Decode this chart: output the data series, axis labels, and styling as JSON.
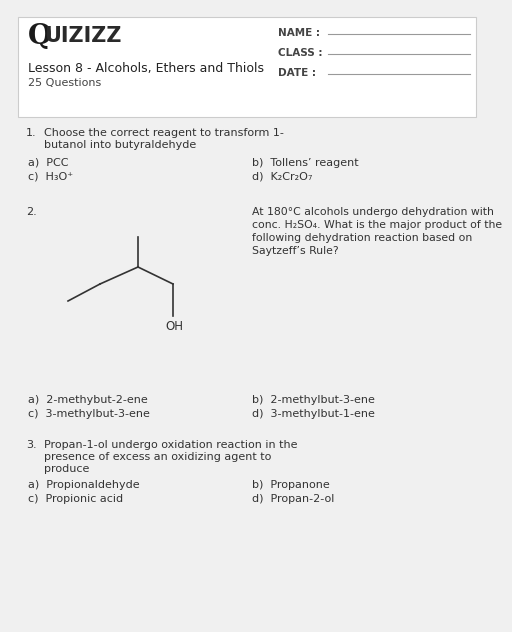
{
  "bg_color": "#f0f0f0",
  "card_color": "#ffffff",
  "border_color": "#cccccc",
  "lesson_title": "Lesson 8 - Alcohols, Ethers and Thiols",
  "num_questions": "25 Questions",
  "name_label": "NAME :",
  "class_label": "CLASS :",
  "date_label": "DATE :",
  "q1_num": "1.",
  "q1_text_line1": "Choose the correct reagent to transform 1-",
  "q1_text_line2": "butanol into butyraldehyde",
  "q1_a": "a)  PCC",
  "q1_b": "b)  Tollens’ reagent",
  "q1_c_text": "c)  H₃O⁺",
  "q1_d_text": "d)  K₂Cr₂O₇",
  "q2_num": "2.",
  "q2_text_line1": "At 180°C alcohols undergo dehydration with",
  "q2_text_line2": "conc. H₂SO₄. What is the major product of the",
  "q2_text_line3": "following dehydration reaction based on",
  "q2_text_line4": "Saytzeff’s Rule?",
  "q2_a": "a)  2-methybut-2-ene",
  "q2_b": "b)  2-methylbut-3-ene",
  "q2_c": "c)  3-methylbut-3-ene",
  "q2_d": "d)  3-methylbut-1-ene",
  "q3_num": "3.",
  "q3_text_line1": "Propan-1-ol undergo oxidation reaction in the",
  "q3_text_line2": "presence of excess an oxidizing agent to",
  "q3_text_line3": "produce",
  "q3_a": "a)  Propionaldehyde",
  "q3_b": "b)  Propanone",
  "q3_c": "c)  Propionic acid",
  "q3_d": "d)  Propan-2-ol",
  "text_color": "#333333",
  "gray_color": "#666666",
  "line_color": "#999999",
  "bond_color": "#333333"
}
